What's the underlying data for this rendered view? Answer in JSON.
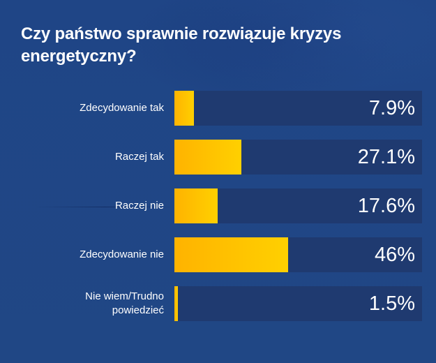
{
  "title": "Czy państwo sprawnie rozwiązuje kryzys energetyczny?",
  "colors": {
    "background": "#204785",
    "track": "#1f3a70",
    "bar_start": "#ffb300",
    "bar_end": "#ffd000",
    "text": "#ffffff"
  },
  "rows": [
    {
      "label": "Zdecydowanie tak",
      "value": 7.9,
      "display": "7.9%"
    },
    {
      "label": "Raczej tak",
      "value": 27.1,
      "display": "27.1%"
    },
    {
      "label": "Raczej nie",
      "value": 17.6,
      "display": "17.6%"
    },
    {
      "label": "Zdecydowanie nie",
      "value": 46,
      "display": "46%"
    },
    {
      "label": "Nie wiem/Trudno powiedzieć",
      "value": 1.5,
      "display": "1.5%"
    }
  ],
  "chart_data": {
    "type": "bar",
    "orientation": "horizontal",
    "title": "Czy państwo sprawnie rozwiązuje kryzys energetyczny?",
    "categories": [
      "Zdecydowanie tak",
      "Raczej tak",
      "Raczej nie",
      "Zdecydowanie nie",
      "Nie wiem/Trudno powiedzieć"
    ],
    "values": [
      7.9,
      27.1,
      17.6,
      46,
      1.5
    ],
    "value_labels": [
      "7.9%",
      "27.1%",
      "17.6%",
      "46%",
      "1.5%"
    ],
    "xlabel": "",
    "ylabel": "",
    "unit": "%",
    "grid": false,
    "legend": false
  }
}
